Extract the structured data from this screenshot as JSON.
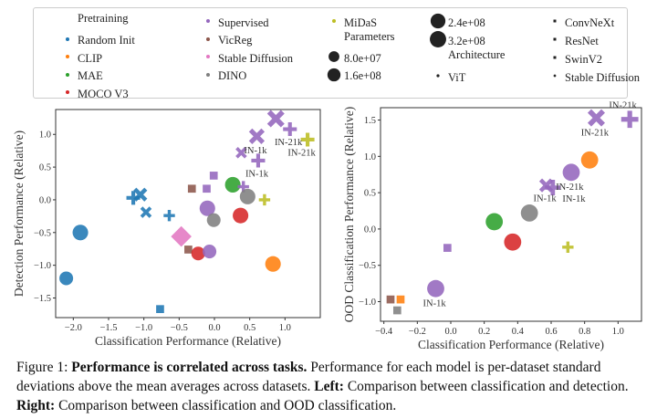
{
  "legend": {
    "pretraining_title": "Pretraining",
    "pretraining": [
      {
        "name": "Random Init",
        "color": "#1f77b4"
      },
      {
        "name": "CLIP",
        "color": "#ff7f0e"
      },
      {
        "name": "MAE",
        "color": "#2ca02c"
      },
      {
        "name": "MOCO V3",
        "color": "#d62728"
      },
      {
        "name": "Supervised",
        "color": "#9467bd"
      },
      {
        "name": "VicReg",
        "color": "#8c564b"
      },
      {
        "name": "Stable Diffusion",
        "color": "#e377c2"
      },
      {
        "name": "DINO",
        "color": "#7f7f7f"
      },
      {
        "name": "MiDaS",
        "color": "#bcbd22"
      }
    ],
    "parameters_title": "Parameters",
    "parameters": [
      "8.0e+07",
      "1.6e+08",
      "2.4e+08",
      "3.2e+08"
    ],
    "architecture_title": "Architecture",
    "architecture": [
      {
        "name": "ViT",
        "marker": "circle"
      },
      {
        "name": "ConvNeXt",
        "marker": "plus"
      },
      {
        "name": "ResNet",
        "marker": "square"
      },
      {
        "name": "SwinV2",
        "marker": "x"
      },
      {
        "name": "Stable Diffusion",
        "marker": "diamond"
      }
    ]
  },
  "chart_data": [
    {
      "type": "scatter",
      "xlabel": "Classification Performance (Relative)",
      "ylabel": "Detection Performance (Relative)",
      "xlim": [
        -2.25,
        1.5
      ],
      "ylim": [
        -1.8,
        1.38
      ],
      "xticks": [
        -2.0,
        -1.5,
        -1.0,
        -0.5,
        0.0,
        0.5,
        1.0
      ],
      "yticks": [
        -1.5,
        -1.0,
        -0.5,
        0.0,
        0.5,
        1.0
      ],
      "points": [
        {
          "x": 0.87,
          "y": 1.24,
          "c": "Supervised",
          "m": "x",
          "s": 320000000.0
        },
        {
          "x": 1.07,
          "y": 1.08,
          "c": "Supervised",
          "m": "plus",
          "s": 160000000.0,
          "label": "IN-21k"
        },
        {
          "x": 1.32,
          "y": 0.92,
          "c": "MiDaS",
          "m": "plus",
          "s": 160000000.0,
          "label": "IN-21k"
        },
        {
          "x": 0.6,
          "y": 0.97,
          "c": "Supervised",
          "m": "x",
          "s": 240000000.0,
          "label": "IN-1k"
        },
        {
          "x": 0.38,
          "y": 0.72,
          "c": "Supervised",
          "m": "x",
          "s": 80000000.0
        },
        {
          "x": 0.62,
          "y": 0.6,
          "c": "Supervised",
          "m": "plus",
          "s": 160000000.0,
          "label": "IN-1k"
        },
        {
          "x": -0.01,
          "y": 0.37,
          "c": "Supervised",
          "m": "square",
          "s": 80000000.0
        },
        {
          "x": -0.32,
          "y": 0.17,
          "c": "VicReg",
          "m": "square",
          "s": 80000000.0
        },
        {
          "x": -0.11,
          "y": 0.17,
          "c": "Supervised",
          "m": "square",
          "s": 80000000.0
        },
        {
          "x": 0.26,
          "y": 0.23,
          "c": "MAE",
          "m": "circle",
          "s": 240000000.0
        },
        {
          "x": 0.41,
          "y": 0.2,
          "c": "Supervised",
          "m": "plus",
          "s": 80000000.0
        },
        {
          "x": 0.47,
          "y": 0.05,
          "c": "DINO",
          "m": "circle",
          "s": 240000000.0
        },
        {
          "x": 0.71,
          "y": 0.0,
          "c": "MiDaS",
          "m": "plus",
          "s": 80000000.0
        },
        {
          "x": -1.15,
          "y": 0.03,
          "c": "Random Init",
          "m": "plus",
          "s": 160000000.0
        },
        {
          "x": -1.05,
          "y": 0.08,
          "c": "Random Init",
          "m": "x",
          "s": 160000000.0
        },
        {
          "x": -0.97,
          "y": -0.19,
          "c": "Random Init",
          "m": "x",
          "s": 80000000.0
        },
        {
          "x": -0.64,
          "y": -0.24,
          "c": "Random Init",
          "m": "plus",
          "s": 80000000.0
        },
        {
          "x": -0.1,
          "y": -0.13,
          "c": "Supervised",
          "m": "circle",
          "s": 240000000.0
        },
        {
          "x": -0.01,
          "y": -0.31,
          "c": "DINO",
          "m": "circle",
          "s": 160000000.0
        },
        {
          "x": 0.37,
          "y": -0.24,
          "c": "MOCO V3",
          "m": "circle",
          "s": 240000000.0
        },
        {
          "x": -1.9,
          "y": -0.5,
          "c": "Random Init",
          "m": "circle",
          "s": 240000000.0
        },
        {
          "x": -0.47,
          "y": -0.56,
          "c": "Stable Diffusion",
          "m": "diamond",
          "s": 320000000.0
        },
        {
          "x": -0.37,
          "y": -0.76,
          "c": "VicReg",
          "m": "square",
          "s": 80000000.0
        },
        {
          "x": -0.23,
          "y": -0.82,
          "c": "MOCO V3",
          "m": "circle",
          "s": 160000000.0
        },
        {
          "x": -0.07,
          "y": -0.79,
          "c": "Supervised",
          "m": "circle",
          "s": 160000000.0
        },
        {
          "x": 0.83,
          "y": -0.98,
          "c": "CLIP",
          "m": "circle",
          "s": 240000000.0
        },
        {
          "x": -2.1,
          "y": -1.2,
          "c": "Random Init",
          "m": "circle",
          "s": 160000000.0
        },
        {
          "x": -0.77,
          "y": -1.67,
          "c": "Random Init",
          "m": "square",
          "s": 80000000.0
        }
      ]
    },
    {
      "type": "scatter",
      "xlabel": "Classification Performance (Relative)",
      "ylabel": "OOD Classification Performance (Relative)",
      "xlim": [
        -0.42,
        1.14
      ],
      "ylim": [
        -1.27,
        1.67
      ],
      "xticks": [
        -0.4,
        -0.2,
        0.0,
        0.2,
        0.4,
        0.6,
        0.8,
        1.0
      ],
      "yticks": [
        -1.0,
        -0.5,
        0.0,
        0.5,
        1.0,
        1.5
      ],
      "points": [
        {
          "x": 0.87,
          "y": 1.53,
          "c": "Supervised",
          "m": "x",
          "s": 320000000.0,
          "label": "IN-21k"
        },
        {
          "x": 1.07,
          "y": 1.51,
          "c": "Supervised",
          "m": "plus",
          "s": 320000000.0,
          "label": "IN-21k"
        },
        {
          "x": 0.83,
          "y": 0.95,
          "c": "CLIP",
          "m": "circle",
          "s": 320000000.0
        },
        {
          "x": 0.72,
          "y": 0.78,
          "c": "Supervised",
          "m": "circle",
          "s": 320000000.0,
          "label": "IN-21k"
        },
        {
          "x": 0.57,
          "y": 0.6,
          "c": "Supervised",
          "m": "x",
          "s": 160000000.0,
          "label": "IN-1k"
        },
        {
          "x": 0.61,
          "y": 0.57,
          "c": "Supervised",
          "m": "plus",
          "s": 240000000.0,
          "label": "IN-1k"
        },
        {
          "x": 0.47,
          "y": 0.22,
          "c": "DINO",
          "m": "circle",
          "s": 320000000.0
        },
        {
          "x": 0.26,
          "y": 0.1,
          "c": "MAE",
          "m": "circle",
          "s": 320000000.0
        },
        {
          "x": 0.37,
          "y": -0.18,
          "c": "MOCO V3",
          "m": "circle",
          "s": 320000000.0
        },
        {
          "x": -0.02,
          "y": -0.26,
          "c": "Supervised",
          "m": "square",
          "s": 80000000.0
        },
        {
          "x": 0.7,
          "y": -0.25,
          "c": "MiDaS",
          "m": "plus",
          "s": 80000000.0
        },
        {
          "x": -0.09,
          "y": -0.82,
          "c": "Supervised",
          "m": "circle",
          "s": 320000000.0,
          "label": "IN-1k"
        },
        {
          "x": -0.36,
          "y": -0.97,
          "c": "VicReg",
          "m": "square",
          "s": 80000000.0
        },
        {
          "x": -0.3,
          "y": -0.97,
          "c": "CLIP",
          "m": "square",
          "s": 80000000.0
        },
        {
          "x": -0.32,
          "y": -1.12,
          "c": "DINO",
          "m": "square",
          "s": 80000000.0
        }
      ]
    }
  ],
  "caption": {
    "prefix": "Figure 1: ",
    "bold1": "Performance is correlated across tasks.",
    "text1": " Performance for each model is per-dataset standard deviations above the mean averages across datasets. ",
    "bold2": "Left:",
    "text2": " Comparison between classification and detection. ",
    "bold3": "Right:",
    "text3": " Comparison between classification and OOD classification."
  }
}
